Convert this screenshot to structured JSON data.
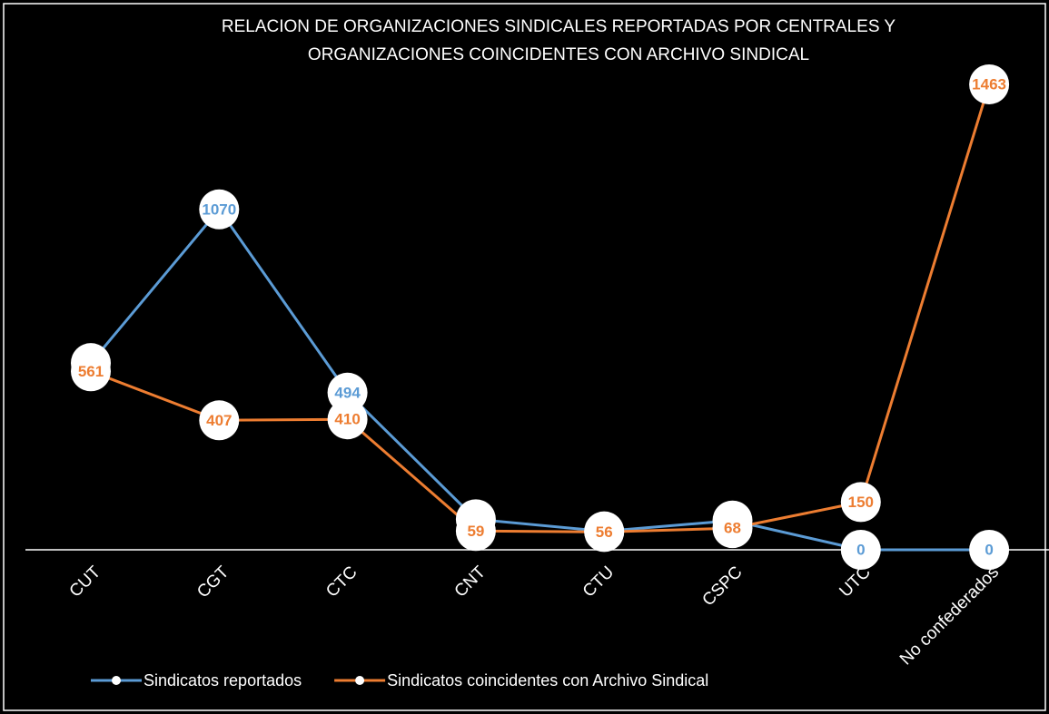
{
  "chart_data": {
    "type": "line",
    "title": [
      "RELACION DE ORGANIZACIONES SINDICALES REPORTADAS POR CENTRALES Y",
      "ORGANIZACIONES COINCIDENTES CON ARCHIVO SINDICAL"
    ],
    "categories": [
      "CUT",
      "CGT",
      "CTC",
      "CNT",
      "CTU",
      "CSPC",
      "UTC",
      "No confederados"
    ],
    "series": [
      {
        "name": "Sindicatos reportados",
        "color": "#5b9bd5",
        "values": [
          587,
          1070,
          494,
          96,
          58,
          92,
          0,
          0
        ]
      },
      {
        "name": "Sindicatos coincidentes con Archivo Sindical",
        "color": "#ed7d31",
        "values": [
          561,
          407,
          410,
          59,
          56,
          68,
          150,
          1463
        ]
      }
    ],
    "ylim": [
      0,
      1500
    ],
    "legend": "bottom"
  }
}
